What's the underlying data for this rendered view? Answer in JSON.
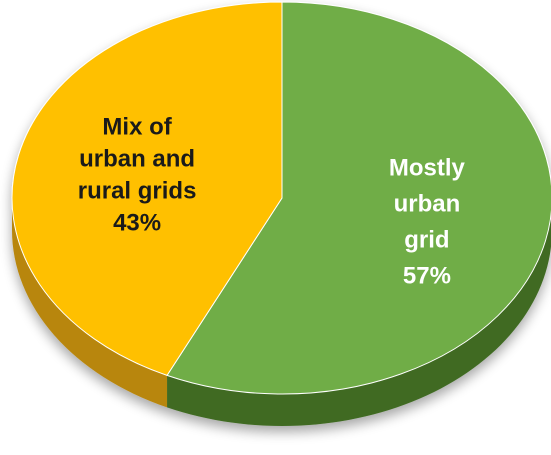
{
  "chart_data": {
    "type": "pie",
    "title": "",
    "slices": [
      {
        "label": "Mostly urban grid",
        "value": 57,
        "label_lines": [
          "Mostly",
          "urban",
          "grid",
          "57%"
        ],
        "color": "#70AD47",
        "side_color": "#3F6B22"
      },
      {
        "label": "Mix of urban and rural grids",
        "value": 43,
        "label_lines": [
          "Mix of",
          "urban and",
          "rural grids",
          "43%"
        ],
        "color": "#FFC000",
        "side_color": "#B8860B"
      }
    ],
    "legend": "none",
    "style": "3d"
  }
}
